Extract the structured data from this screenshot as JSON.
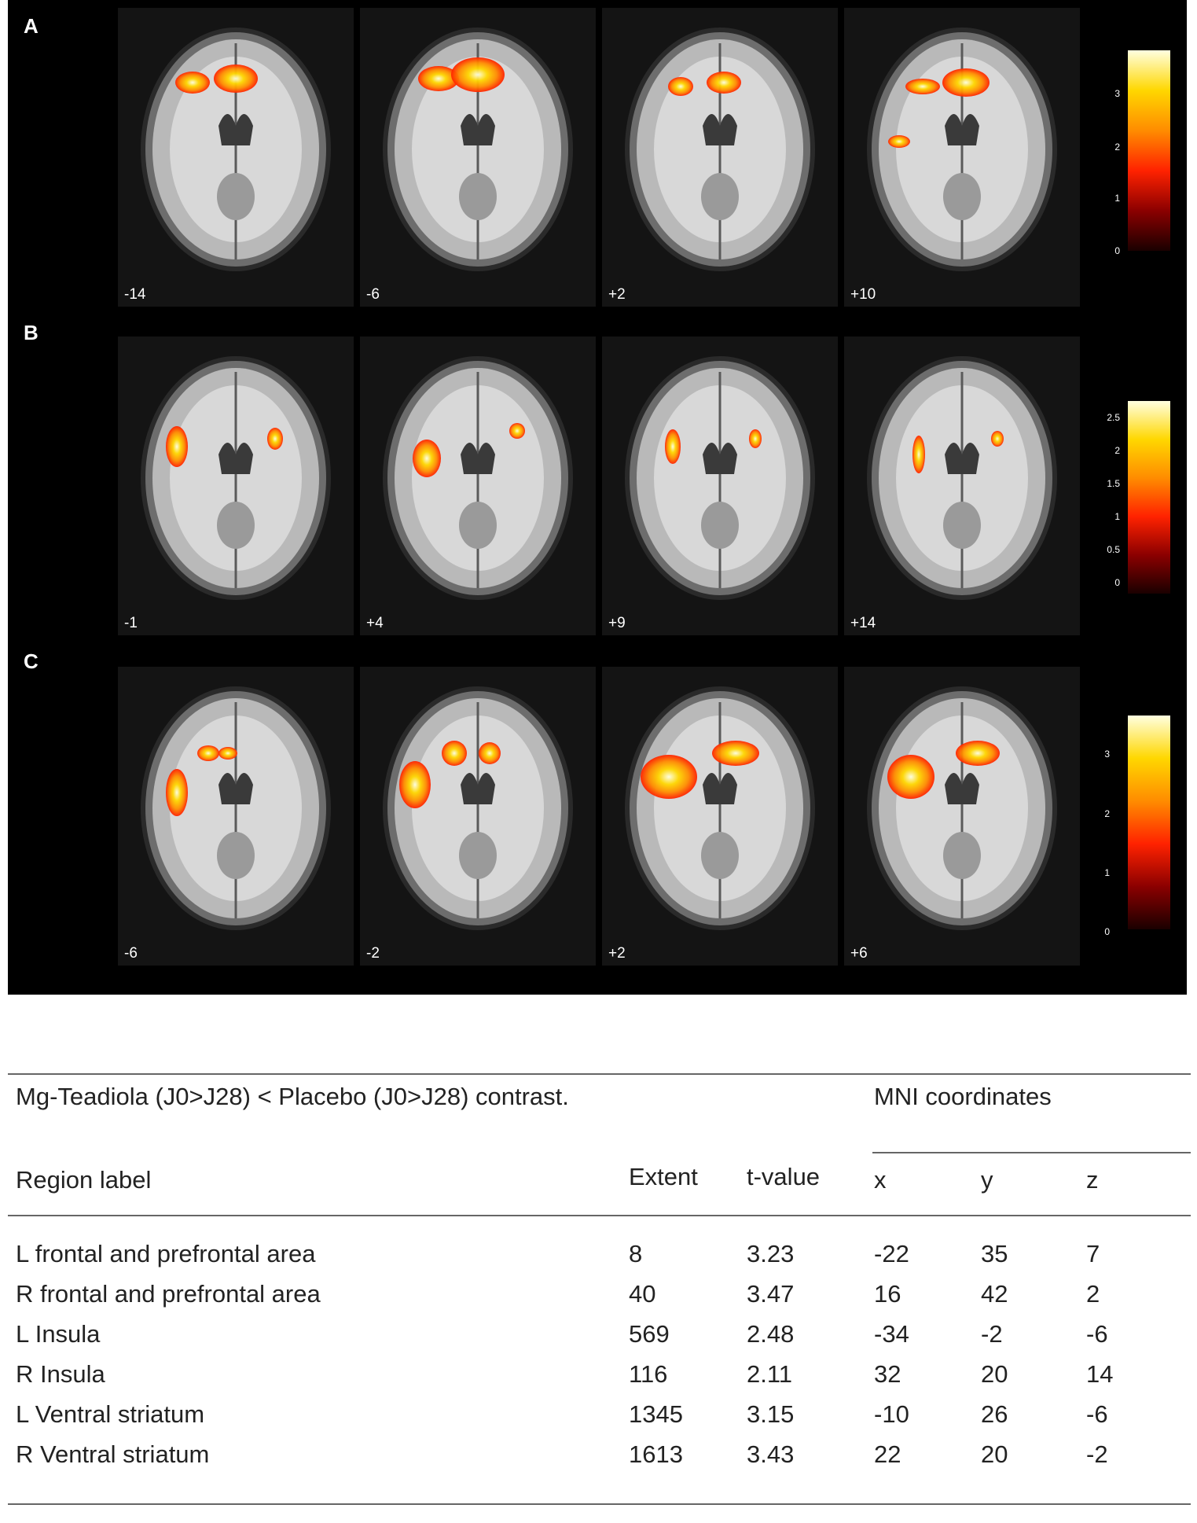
{
  "figure": {
    "panels": [
      {
        "letter": "A",
        "slices": [
          "-14",
          "-6",
          "+2",
          "+10"
        ],
        "colorbar_ticks": [
          "3",
          "2",
          "1",
          "0"
        ]
      },
      {
        "letter": "B",
        "slices": [
          "-1",
          "+4",
          "+9",
          "+14"
        ],
        "colorbar_ticks": [
          "2.5",
          "2",
          "1.5",
          "1",
          "0.5",
          "0"
        ]
      },
      {
        "letter": "C",
        "slices": [
          "-6",
          "-2",
          "+2",
          "+6"
        ],
        "colorbar_ticks": [
          "3",
          "2",
          "1",
          "0"
        ]
      }
    ],
    "colormap": [
      "#1a0000",
      "#8b0000",
      "#ff2200",
      "#ff8c00",
      "#ffd700",
      "#ffffe0"
    ]
  },
  "table": {
    "caption": "Mg-Teadiola (J0>J28) < Placebo (J0>J28) contrast.",
    "mni_header": "MNI coordinates",
    "columns": [
      "Region label",
      "Extent",
      "t-value",
      "x",
      "y",
      "z"
    ],
    "rows": [
      [
        "L frontal and prefrontal area",
        "8",
        "3.23",
        "-22",
        "35",
        "7"
      ],
      [
        "R frontal and prefrontal area",
        "40",
        "3.47",
        "16",
        "42",
        "2"
      ],
      [
        "L Insula",
        "569",
        "2.48",
        "-34",
        "-2",
        "-6"
      ],
      [
        "R Insula",
        "116",
        "2.11",
        "32",
        "20",
        "14"
      ],
      [
        "L Ventral striatum",
        "1345",
        "3.15",
        "-10",
        "26",
        "-6"
      ],
      [
        "R Ventral striatum",
        "1613",
        "3.43",
        "22",
        "20",
        "-2"
      ]
    ]
  }
}
